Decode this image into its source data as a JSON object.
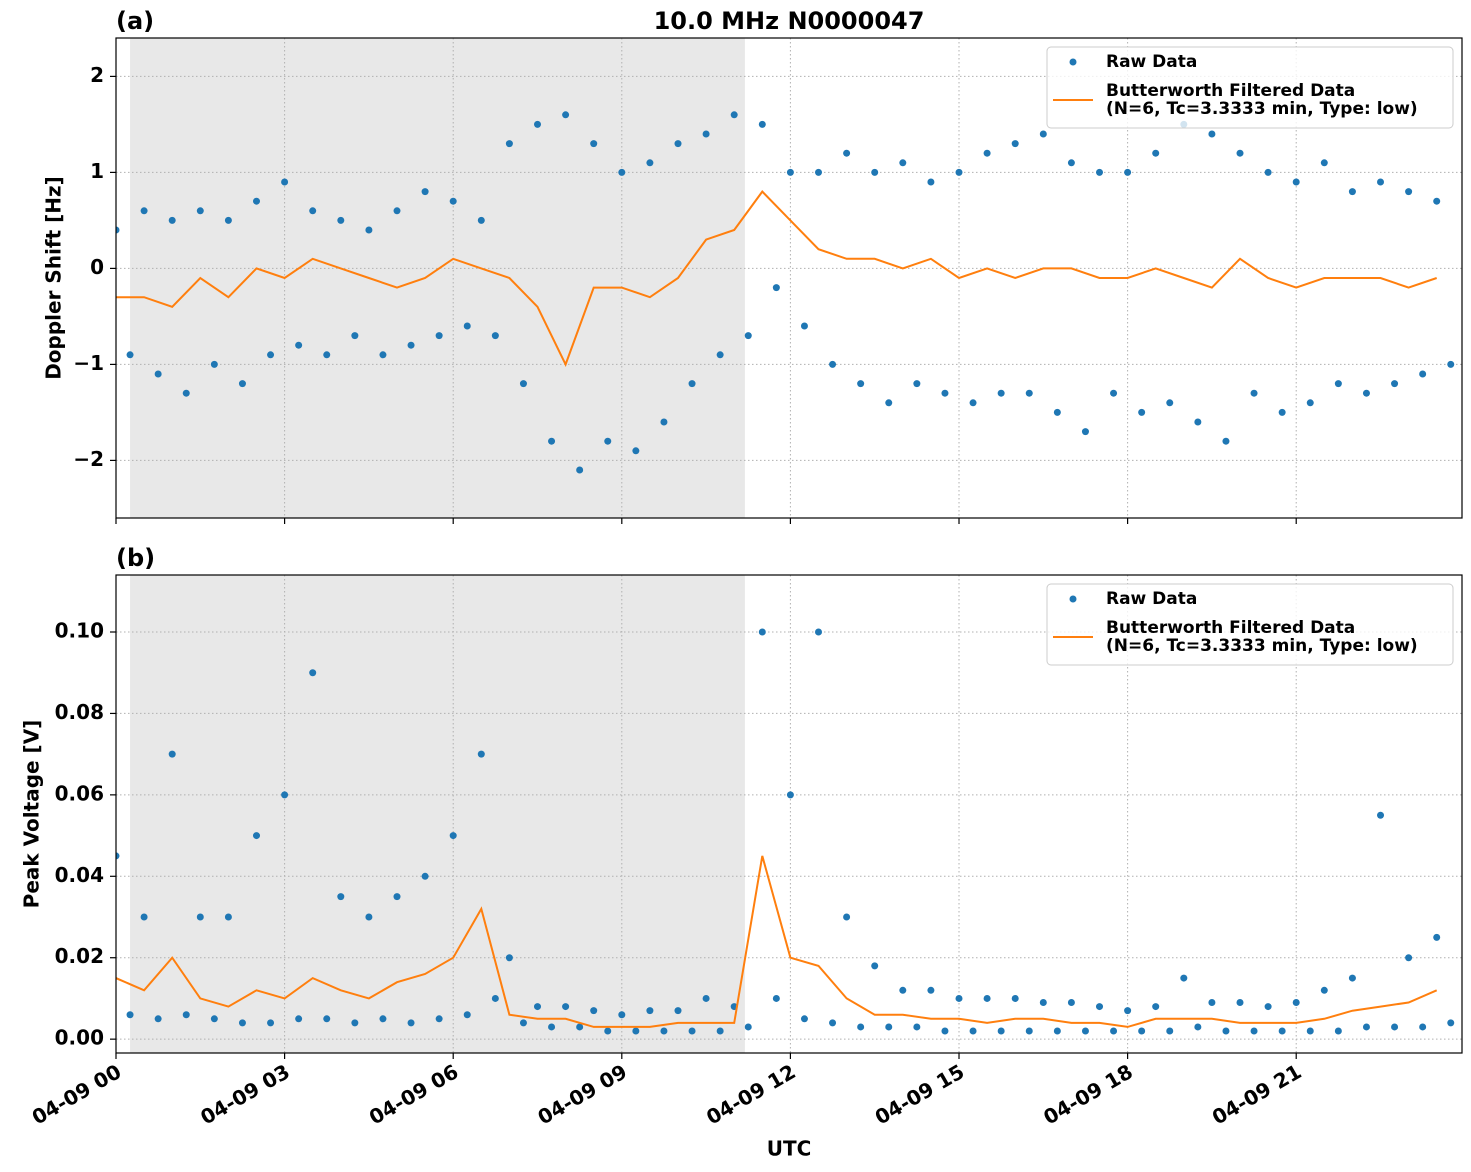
{
  "chart_data": [
    {
      "type": "line",
      "title": "10.0 MHz N0000047",
      "panel_label": "(a)",
      "ylabel": "Doppler Shift [Hz]",
      "xlim": [
        0,
        23.95
      ],
      "xticks": [
        0,
        3,
        6,
        9,
        12,
        15,
        18,
        21
      ],
      "ylim": [
        -2.6,
        2.4
      ],
      "yticks": [
        {
          "value": -2,
          "label": "−2"
        },
        {
          "value": -1,
          "label": "−1"
        },
        0,
        1,
        2
      ],
      "grid": true,
      "legend": "upper right",
      "shaded_span": [
        0.25,
        11.19
      ],
      "series": [
        {
          "name": "Raw Data",
          "color": "#1f77b4",
          "style": "dots",
          "x": [
            0,
            0.25,
            0.5,
            0.75,
            1,
            1.25,
            1.5,
            1.75,
            2,
            2.25,
            2.5,
            2.75,
            3,
            3.25,
            3.5,
            3.75,
            4,
            4.25,
            4.5,
            4.75,
            5,
            5.25,
            5.5,
            5.75,
            6,
            6.25,
            6.5,
            6.75,
            7,
            7.25,
            7.5,
            7.75,
            8,
            8.25,
            8.5,
            8.75,
            9,
            9.25,
            9.5,
            9.75,
            10,
            10.25,
            10.5,
            10.75,
            11,
            11.25,
            11.5,
            11.75,
            12,
            12.25,
            12.5,
            12.75,
            13,
            13.25,
            13.5,
            13.75,
            14,
            14.25,
            14.5,
            14.75,
            15,
            15.25,
            15.5,
            15.75,
            16,
            16.25,
            16.5,
            16.75,
            17,
            17.25,
            17.5,
            17.75,
            18,
            18.25,
            18.5,
            18.75,
            19,
            19.25,
            19.5,
            19.75,
            20,
            20.25,
            20.5,
            20.75,
            21,
            21.25,
            21.5,
            21.75,
            22,
            22.25,
            22.5,
            22.75,
            23,
            23.25,
            23.5,
            23.75
          ],
          "values": [
            0.4,
            -0.9,
            0.6,
            -1.1,
            0.5,
            -1.3,
            0.6,
            -1.0,
            0.5,
            -1.2,
            0.7,
            -0.9,
            0.9,
            -0.8,
            0.6,
            -0.9,
            0.5,
            -0.7,
            0.4,
            -0.9,
            0.6,
            -0.8,
            0.8,
            -0.7,
            0.7,
            -0.6,
            0.5,
            -0.7,
            1.3,
            -1.2,
            1.5,
            -1.8,
            1.6,
            -2.1,
            1.3,
            -1.8,
            1.0,
            -1.9,
            1.1,
            -1.6,
            1.3,
            -1.2,
            1.4,
            -0.9,
            1.6,
            -0.7,
            1.5,
            -0.2,
            1.0,
            -0.6,
            1.0,
            -1.0,
            1.2,
            -1.2,
            1.0,
            -1.4,
            1.1,
            -1.2,
            0.9,
            -1.3,
            1.0,
            -1.4,
            1.2,
            -1.3,
            1.3,
            -1.3,
            1.4,
            -1.5,
            1.1,
            -1.7,
            1.0,
            -1.3,
            1.0,
            -1.5,
            1.2,
            -1.4,
            1.5,
            -1.6,
            1.4,
            -1.8,
            1.2,
            -1.3,
            1.0,
            -1.5,
            0.9,
            -1.4,
            1.1,
            -1.2,
            0.8,
            -1.3,
            0.9,
            -1.2,
            0.8,
            -1.1,
            0.7,
            -1.0
          ]
        },
        {
          "name": "Butterworth Filtered Data\n(N=6, Tc=3.3333 min, Type: low)",
          "color": "#ff7f0e",
          "style": "line",
          "x": [
            0,
            0.5,
            1,
            1.5,
            2,
            2.5,
            3,
            3.5,
            4,
            4.5,
            5,
            5.5,
            6,
            6.5,
            7,
            7.5,
            8,
            8.5,
            9,
            9.5,
            10,
            10.5,
            11,
            11.5,
            12,
            12.5,
            13,
            13.5,
            14,
            14.5,
            15,
            15.5,
            16,
            16.5,
            17,
            17.5,
            18,
            18.5,
            19,
            19.5,
            20,
            20.5,
            21,
            21.5,
            22,
            22.5,
            23,
            23.5
          ],
          "values": [
            -0.3,
            -0.3,
            -0.4,
            -0.1,
            -0.3,
            0.0,
            -0.1,
            0.1,
            0.0,
            -0.1,
            -0.2,
            -0.1,
            0.1,
            0.0,
            -0.1,
            -0.4,
            -1.0,
            -0.2,
            -0.2,
            -0.3,
            -0.1,
            0.3,
            0.4,
            0.8,
            0.5,
            0.2,
            0.1,
            0.1,
            0.0,
            0.1,
            -0.1,
            0.0,
            -0.1,
            0.0,
            0.0,
            -0.1,
            -0.1,
            0.0,
            -0.1,
            -0.2,
            0.1,
            -0.1,
            -0.2,
            -0.1,
            -0.1,
            -0.1,
            -0.2,
            -0.1
          ]
        }
      ]
    },
    {
      "type": "line",
      "panel_label": "(b)",
      "ylabel": "Peak Voltage [V]",
      "xlabel": "UTC",
      "xlim": [
        0,
        23.95
      ],
      "xticks": [
        {
          "value": 0,
          "label": "04-09 00"
        },
        {
          "value": 3,
          "label": "04-09 03"
        },
        {
          "value": 6,
          "label": "04-09 06"
        },
        {
          "value": 9,
          "label": "04-09 09"
        },
        {
          "value": 12,
          "label": "04-09 12"
        },
        {
          "value": 15,
          "label": "04-09 15"
        },
        {
          "value": 18,
          "label": "04-09 18"
        },
        {
          "value": 21,
          "label": "04-09 21"
        }
      ],
      "ylim": [
        -0.0034,
        0.114
      ],
      "yticks": [
        {
          "value": 0,
          "label": "0.00"
        },
        0.02,
        0.04,
        0.06,
        0.08,
        {
          "value": 0.1,
          "label": "0.10"
        }
      ],
      "grid": true,
      "legend": "upper right",
      "shaded_span": [
        0.25,
        11.19
      ],
      "series": [
        {
          "name": "Raw Data",
          "color": "#1f77b4",
          "style": "dots",
          "x": [
            0,
            0.25,
            0.5,
            0.75,
            1,
            1.25,
            1.5,
            1.75,
            2,
            2.25,
            2.5,
            2.75,
            3,
            3.25,
            3.5,
            3.75,
            4,
            4.25,
            4.5,
            4.75,
            5,
            5.25,
            5.5,
            5.75,
            6,
            6.25,
            6.5,
            6.75,
            7,
            7.25,
            7.5,
            7.75,
            8,
            8.25,
            8.5,
            8.75,
            9,
            9.25,
            9.5,
            9.75,
            10,
            10.25,
            10.5,
            10.75,
            11,
            11.25,
            11.5,
            11.75,
            12,
            12.25,
            12.5,
            12.75,
            13,
            13.25,
            13.5,
            13.75,
            14,
            14.25,
            14.5,
            14.75,
            15,
            15.25,
            15.5,
            15.75,
            16,
            16.25,
            16.5,
            16.75,
            17,
            17.25,
            17.5,
            17.75,
            18,
            18.25,
            18.5,
            18.75,
            19,
            19.25,
            19.5,
            19.75,
            20,
            20.25,
            20.5,
            20.75,
            21,
            21.25,
            21.5,
            21.75,
            22,
            22.25,
            22.5,
            22.75,
            23,
            23.25,
            23.5,
            23.75
          ],
          "values": [
            0.045,
            0.006,
            0.03,
            0.005,
            0.07,
            0.006,
            0.03,
            0.005,
            0.03,
            0.004,
            0.05,
            0.004,
            0.06,
            0.005,
            0.09,
            0.005,
            0.035,
            0.004,
            0.03,
            0.005,
            0.035,
            0.004,
            0.04,
            0.005,
            0.05,
            0.006,
            0.07,
            0.01,
            0.02,
            0.004,
            0.008,
            0.003,
            0.008,
            0.003,
            0.007,
            0.002,
            0.006,
            0.002,
            0.007,
            0.002,
            0.007,
            0.002,
            0.01,
            0.002,
            0.008,
            0.003,
            0.1,
            0.01,
            0.06,
            0.005,
            0.1,
            0.004,
            0.03,
            0.003,
            0.018,
            0.003,
            0.012,
            0.003,
            0.012,
            0.002,
            0.01,
            0.002,
            0.01,
            0.002,
            0.01,
            0.002,
            0.009,
            0.002,
            0.009,
            0.002,
            0.008,
            0.002,
            0.007,
            0.002,
            0.008,
            0.002,
            0.015,
            0.003,
            0.009,
            0.002,
            0.009,
            0.002,
            0.008,
            0.002,
            0.009,
            0.002,
            0.012,
            0.002,
            0.015,
            0.003,
            0.055,
            0.003,
            0.02,
            0.003,
            0.025,
            0.004
          ]
        },
        {
          "name": "Butterworth Filtered Data\n(N=6, Tc=3.3333 min, Type: low)",
          "color": "#ff7f0e",
          "style": "line",
          "x": [
            0,
            0.5,
            1,
            1.5,
            2,
            2.5,
            3,
            3.5,
            4,
            4.5,
            5,
            5.5,
            6,
            6.5,
            7,
            7.5,
            8,
            8.5,
            9,
            9.5,
            10,
            10.5,
            11,
            11.5,
            12,
            12.5,
            13,
            13.5,
            14,
            14.5,
            15,
            15.5,
            16,
            16.5,
            17,
            17.5,
            18,
            18.5,
            19,
            19.5,
            20,
            20.5,
            21,
            21.5,
            22,
            22.5,
            23,
            23.5
          ],
          "values": [
            0.015,
            0.012,
            0.02,
            0.01,
            0.008,
            0.012,
            0.01,
            0.015,
            0.012,
            0.01,
            0.014,
            0.016,
            0.02,
            0.032,
            0.006,
            0.005,
            0.005,
            0.003,
            0.003,
            0.003,
            0.004,
            0.004,
            0.004,
            0.045,
            0.02,
            0.018,
            0.01,
            0.006,
            0.006,
            0.005,
            0.005,
            0.004,
            0.005,
            0.005,
            0.004,
            0.004,
            0.003,
            0.005,
            0.005,
            0.005,
            0.004,
            0.004,
            0.004,
            0.005,
            0.007,
            0.008,
            0.009,
            0.012
          ]
        }
      ]
    }
  ]
}
